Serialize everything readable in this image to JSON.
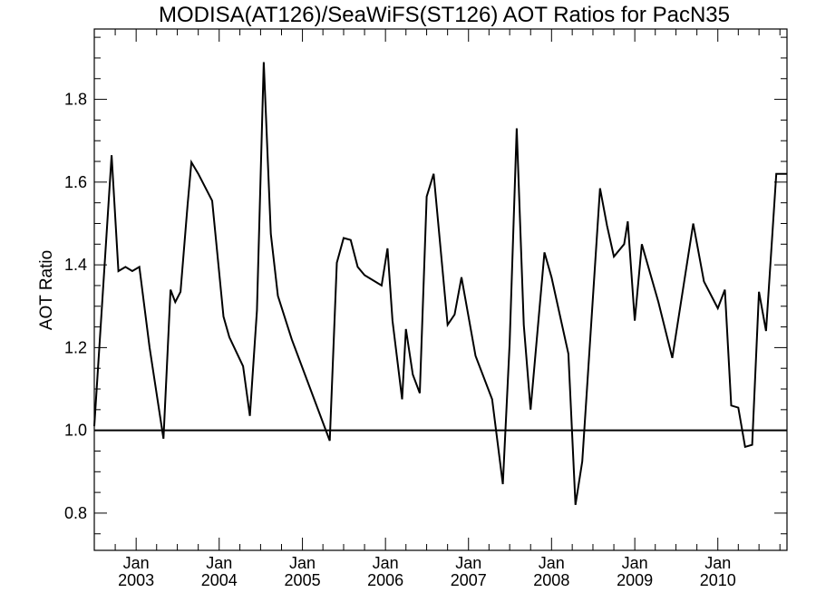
{
  "chart_data": {
    "type": "line",
    "title": "MODISA(AT126)/SeaWiFS(ST126)  AOT Ratios for PacN35",
    "xlabel": "",
    "ylabel": "AOT Ratio",
    "ylim": [
      0.71,
      1.97
    ],
    "xlim": [
      "2002-07-01",
      "2010-11-01"
    ],
    "y_ticks": [
      0.8,
      1.0,
      1.2,
      1.4,
      1.6,
      1.8
    ],
    "y_tick_labels": [
      "0.8",
      "1.0",
      "1.2",
      "1.4",
      "1.6",
      "1.8"
    ],
    "x_ticks": [
      {
        "date": "2003-01-01",
        "month": "Jan",
        "year": "2003"
      },
      {
        "date": "2004-01-01",
        "month": "Jan",
        "year": "2004"
      },
      {
        "date": "2005-01-01",
        "month": "Jan",
        "year": "2005"
      },
      {
        "date": "2006-01-01",
        "month": "Jan",
        "year": "2006"
      },
      {
        "date": "2007-01-01",
        "month": "Jan",
        "year": "2007"
      },
      {
        "date": "2008-01-01",
        "month": "Jan",
        "year": "2008"
      },
      {
        "date": "2009-01-01",
        "month": "Jan",
        "year": "2009"
      },
      {
        "date": "2010-01-01",
        "month": "Jan",
        "year": "2010"
      }
    ],
    "reference_line": 1.0,
    "grid": false,
    "series": [
      {
        "x": [
          "2002-07-01",
          "2002-09-15",
          "2002-10-15",
          "2002-11-15",
          "2002-12-15",
          "2003-01-15",
          "2003-03-01",
          "2003-05-01",
          "2003-06-01",
          "2003-06-22",
          "2003-07-15",
          "2003-08-15",
          "2003-09-01",
          "2003-10-01",
          "2003-12-01",
          "2004-01-20",
          "2004-02-15",
          "2004-04-15",
          "2004-05-15",
          "2004-06-15",
          "2004-07-15",
          "2004-08-15",
          "2004-09-15",
          "2004-11-15",
          "2005-05-01",
          "2005-06-01",
          "2005-07-01",
          "2005-08-01",
          "2005-09-01",
          "2005-10-01",
          "2005-12-15",
          "2006-01-10",
          "2006-02-01",
          "2006-03-15",
          "2006-04-01",
          "2006-05-01",
          "2006-06-01",
          "2006-07-01",
          "2006-08-01",
          "2006-10-01",
          "2006-11-01",
          "2006-12-01",
          "2007-02-01",
          "2007-04-15",
          "2007-06-01",
          "2007-07-01",
          "2007-08-01",
          "2007-09-01",
          "2007-10-01",
          "2007-12-01",
          "2008-01-01",
          "2008-03-15",
          "2008-04-15",
          "2008-05-15",
          "2008-08-01",
          "2008-09-01",
          "2008-10-01",
          "2008-11-15",
          "2008-12-01",
          "2009-01-01",
          "2009-02-01",
          "2009-04-15",
          "2009-06-15",
          "2009-09-15",
          "2009-11-01",
          "2010-01-01",
          "2010-02-01",
          "2010-03-01",
          "2010-04-01",
          "2010-05-01",
          "2010-06-01",
          "2010-07-01",
          "2010-08-01",
          "2010-09-15",
          "2010-11-01"
        ],
        "y": [
          1.01,
          1.665,
          1.385,
          1.395,
          1.385,
          1.395,
          1.2,
          0.98,
          1.34,
          1.31,
          1.335,
          1.545,
          1.648,
          1.62,
          1.555,
          1.275,
          1.225,
          1.155,
          1.035,
          1.29,
          1.89,
          1.475,
          1.325,
          1.22,
          0.975,
          1.405,
          1.465,
          1.46,
          1.395,
          1.375,
          1.35,
          1.44,
          1.265,
          1.075,
          1.245,
          1.135,
          1.09,
          1.565,
          1.62,
          1.255,
          1.28,
          1.37,
          1.18,
          1.075,
          0.87,
          1.21,
          1.73,
          1.255,
          1.05,
          1.43,
          1.37,
          1.185,
          0.82,
          0.925,
          1.585,
          1.495,
          1.42,
          1.45,
          1.505,
          1.265,
          1.45,
          1.31,
          1.175,
          1.5,
          1.36,
          1.295,
          1.34,
          1.06,
          1.055,
          0.96,
          0.965,
          1.335,
          1.24,
          1.62,
          1.62
        ]
      }
    ]
  }
}
